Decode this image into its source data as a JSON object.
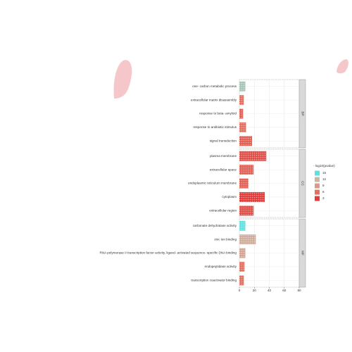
{
  "chart_data": {
    "type": "bar",
    "xlim": [
      0,
      80
    ],
    "xticks": [
      0,
      20,
      40,
      60,
      80
    ],
    "grid": true,
    "facets": [
      {
        "label": "BP",
        "categories": [
          "one- carbon metabolic process",
          "extracellular matrix disassembly",
          "response to beta- amyloid",
          "response to antibiotic stimulus",
          "signal transduction"
        ],
        "values": [
          8,
          6,
          5,
          9,
          17
        ],
        "neglog10p": [
          13,
          6,
          5,
          6,
          5
        ]
      },
      {
        "label": "CC",
        "categories": [
          "plasma membrane",
          "extracellular space",
          "endoplasmic reticulum membrane",
          "cytoplasm",
          "extracellular region"
        ],
        "values": [
          36,
          19,
          12,
          34,
          19
        ],
        "neglog10p": [
          4,
          5,
          5,
          3,
          4
        ]
      },
      {
        "label": "MF",
        "categories": [
          "carbonate dehydratase activity",
          "zinc ion binding",
          "RNA polymerase II transcription factor activity, ligand- activated sequence- specific DNA binding",
          "endopeptidase activity",
          "transcription coactivator binding"
        ],
        "values": [
          8,
          22,
          8,
          7,
          6
        ],
        "neglog10p": [
          15,
          11,
          10,
          6,
          6
        ]
      }
    ],
    "legend": {
      "title": "- log10(pvalue)",
      "values": [
        15,
        12,
        9,
        6,
        3
      ],
      "colors": [
        "#5fe0df",
        "#c9b7a3",
        "#d99a8a",
        "#e0705f",
        "#e23b3b"
      ]
    }
  }
}
